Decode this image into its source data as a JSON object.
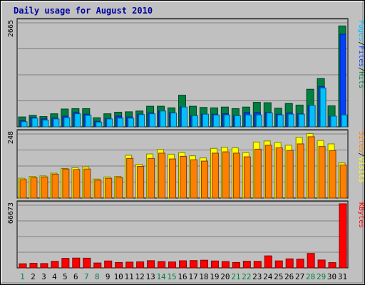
{
  "chart_data": [
    {
      "type": "bar",
      "title": "Daily usage for August 2010",
      "categories": [
        "1",
        "2",
        "3",
        "4",
        "5",
        "6",
        "7",
        "8",
        "9",
        "10",
        "11",
        "12",
        "13",
        "14",
        "15",
        "16",
        "17",
        "18",
        "19",
        "20",
        "21",
        "22",
        "23",
        "24",
        "25",
        "26",
        "27",
        "28",
        "29",
        "30",
        "31"
      ],
      "weekend_days": [
        "1",
        "7",
        "8",
        "14",
        "15",
        "21",
        "22",
        "28",
        "29"
      ],
      "y_tick_label": "2665",
      "ylim": [
        0,
        2665
      ],
      "series": [
        {
          "name": "Hits",
          "color": "#008040",
          "values": [
            250,
            290,
            260,
            330,
            450,
            460,
            460,
            230,
            330,
            370,
            380,
            400,
            520,
            520,
            480,
            800,
            520,
            490,
            480,
            500,
            460,
            500,
            620,
            610,
            470,
            590,
            550,
            950,
            1220,
            530,
            2550
          ]
        },
        {
          "name": "Files",
          "color": "#0040FF",
          "values": [
            160,
            240,
            200,
            220,
            270,
            360,
            320,
            140,
            210,
            270,
            250,
            320,
            350,
            400,
            360,
            500,
            280,
            320,
            320,
            330,
            280,
            360,
            360,
            360,
            320,
            350,
            330,
            540,
            1020,
            270,
            2340
          ]
        },
        {
          "name": "Pages",
          "color": "#00C0FF",
          "values": [
            130,
            220,
            170,
            200,
            230,
            330,
            290,
            120,
            200,
            220,
            220,
            310,
            330,
            400,
            350,
            500,
            280,
            320,
            300,
            300,
            280,
            300,
            300,
            350,
            300,
            320,
            320,
            540,
            980,
            270,
            300
          ]
        }
      ],
      "legend": [
        "Pages",
        "Files",
        "Hits"
      ],
      "legend_placement": "right"
    },
    {
      "type": "bar",
      "y_tick_label": "248",
      "ylim": [
        0,
        248
      ],
      "series": [
        {
          "name": "Visits",
          "color": "#FFFF00",
          "values": [
            75,
            82,
            84,
            94,
            112,
            115,
            118,
            72,
            80,
            82,
            162,
            128,
            167,
            184,
            166,
            172,
            160,
            152,
            188,
            192,
            190,
            172,
            212,
            216,
            210,
            200,
            230,
            244,
            218,
            205,
            133
          ]
        },
        {
          "name": "Sites",
          "color": "#FF8000",
          "values": [
            70,
            77,
            80,
            90,
            110,
            108,
            110,
            68,
            75,
            78,
            150,
            120,
            150,
            170,
            148,
            158,
            145,
            140,
            170,
            175,
            170,
            156,
            185,
            200,
            190,
            180,
            205,
            232,
            195,
            180,
            125
          ]
        }
      ],
      "legend": [
        "Sites",
        "Visits"
      ],
      "legend_placement": "right"
    },
    {
      "type": "bar",
      "y_tick_label": "66673",
      "ylim": [
        0,
        66673
      ],
      "series": [
        {
          "name": "KBytes",
          "color": "#FF0000",
          "values": [
            4300,
            4700,
            4500,
            6800,
            9900,
            10200,
            10100,
            5100,
            7200,
            5600,
            6000,
            6300,
            7500,
            6600,
            6200,
            7400,
            7600,
            8000,
            7200,
            6600,
            5600,
            6900,
            6800,
            12500,
            7300,
            9400,
            9100,
            15000,
            8200,
            5500,
            66673
          ]
        }
      ],
      "legend": [
        "KBytes"
      ],
      "legend_placement": "right"
    }
  ]
}
